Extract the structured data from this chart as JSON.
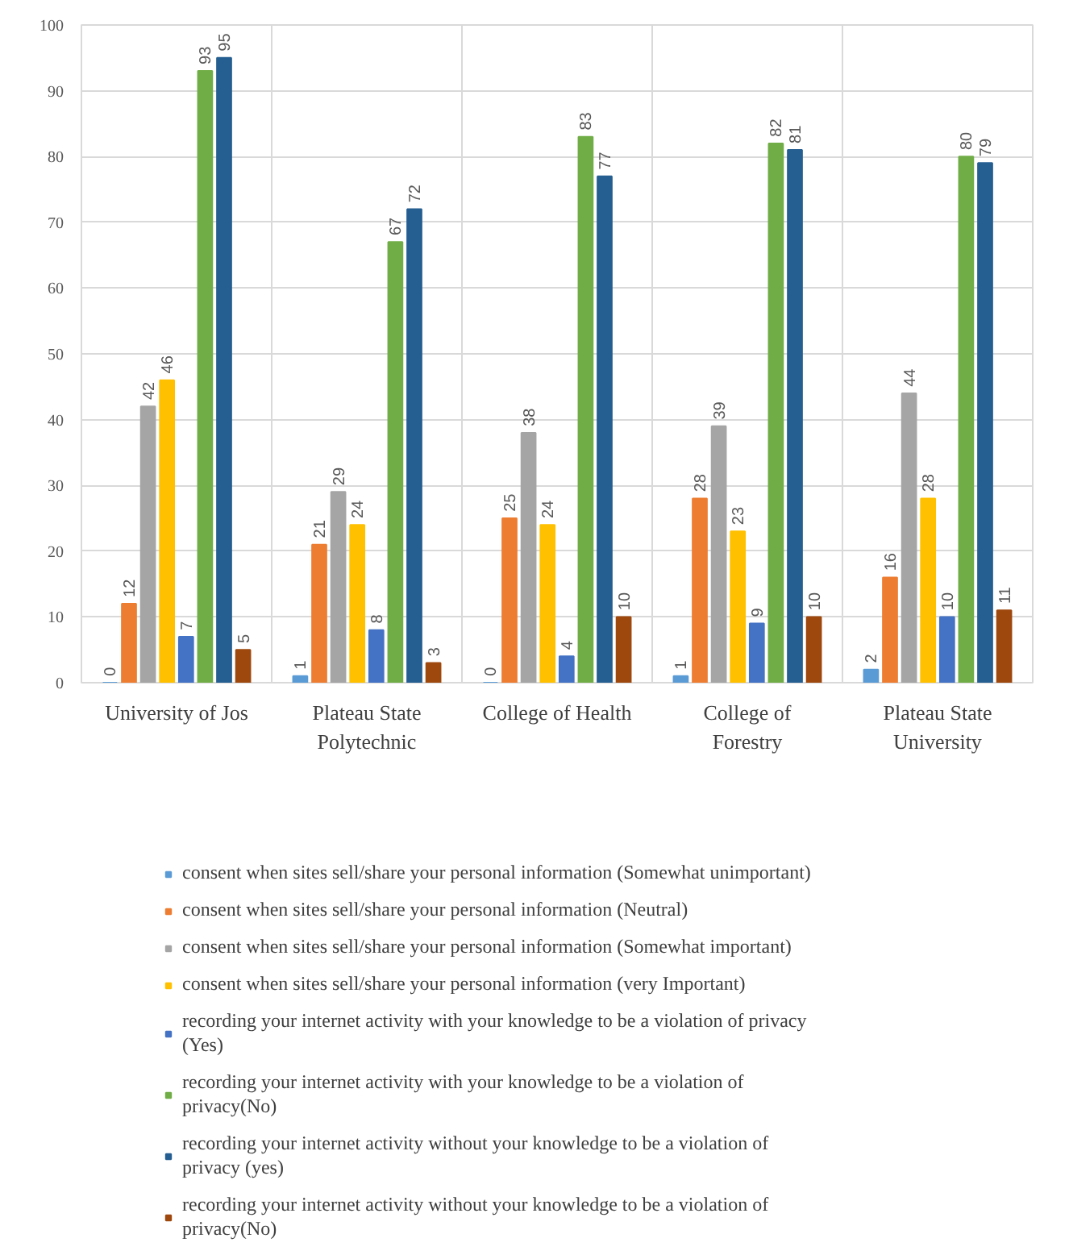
{
  "chart_data": {
    "type": "bar",
    "categories": [
      "University of Jos",
      "Plateau State Polytechnic",
      "College of Health",
      "College of Forestry",
      "Plateau State University"
    ],
    "series": [
      {
        "name": "consent when sites sell/share your personal information (Somewhat unimportant)",
        "color": "#5b9bd5",
        "values": [
          0,
          1,
          0,
          1,
          2
        ]
      },
      {
        "name": "consent when sites sell/share your personal information (Neutral)",
        "color": "#ed7d31",
        "values": [
          12,
          21,
          25,
          28,
          16
        ]
      },
      {
        "name": "consent when sites sell/share your personal information (Somewhat important)",
        "color": "#a5a5a5",
        "values": [
          42,
          29,
          38,
          39,
          44
        ]
      },
      {
        "name": "consent when sites sell/share your personal information (very Important)",
        "color": "#ffc000",
        "values": [
          46,
          24,
          24,
          23,
          28
        ]
      },
      {
        "name": "recording your internet activity with your knowledge to be a violation of privacy (Yes)",
        "color": "#4472c4",
        "values": [
          7,
          8,
          4,
          9,
          10
        ]
      },
      {
        "name": "recording your internet activity with your knowledge to be a violation of privacy(No)",
        "color": "#70ad47",
        "values": [
          93,
          67,
          83,
          82,
          80
        ]
      },
      {
        "name": "recording your internet activity without your knowledge to be a violation of privacy (yes)",
        "color": "#255e91",
        "values": [
          95,
          72,
          77,
          81,
          79
        ]
      },
      {
        "name": "recording your internet activity without your knowledge to be a violation of privacy(No)",
        "color": "#9e480e",
        "values": [
          5,
          3,
          10,
          10,
          11
        ]
      }
    ],
    "ylim": [
      0,
      100
    ],
    "yticks": [
      0,
      10,
      20,
      30,
      40,
      50,
      60,
      70,
      80,
      90,
      100
    ],
    "grid": true,
    "legend": "bottom",
    "data_labels": true
  }
}
